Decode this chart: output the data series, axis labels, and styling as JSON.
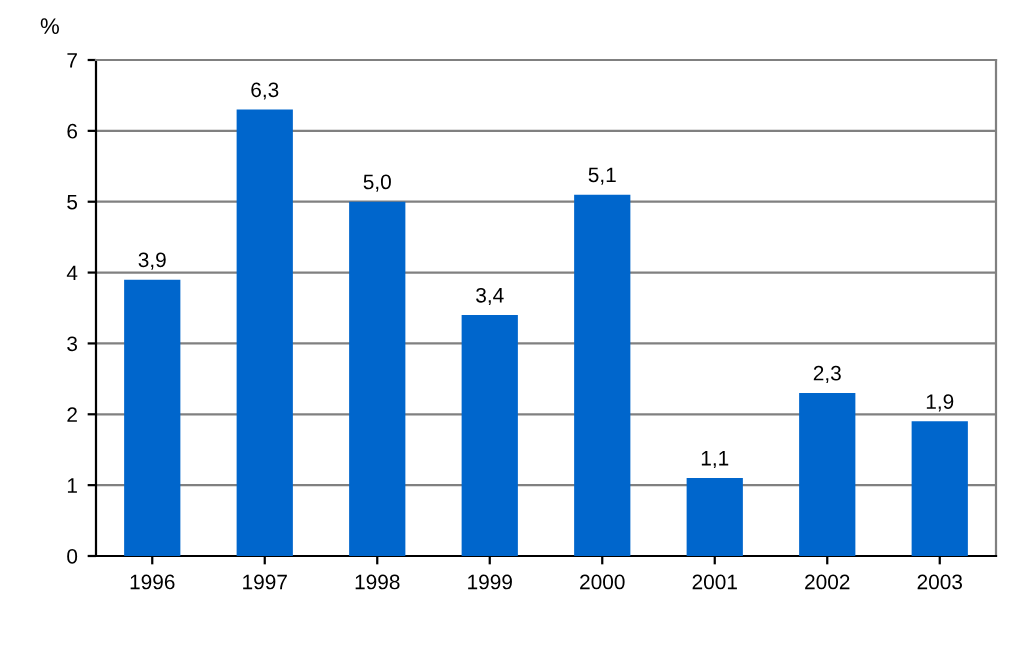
{
  "chart_data": {
    "type": "bar",
    "ylabel": "%",
    "categories": [
      "1996",
      "1997",
      "1998",
      "1999",
      "2000",
      "2001",
      "2002",
      "2003"
    ],
    "values": [
      3.9,
      6.3,
      5.0,
      3.4,
      5.1,
      1.1,
      2.3,
      1.9
    ],
    "value_labels": [
      "3,9",
      "6,3",
      "5,0",
      "3,4",
      "5,1",
      "1,1",
      "2,3",
      "1,9"
    ],
    "color": "#0066cc",
    "ylim": [
      0,
      7
    ],
    "yticks": [
      0,
      1,
      2,
      3,
      4,
      5,
      6,
      7
    ],
    "grid": "y",
    "legend": false
  }
}
